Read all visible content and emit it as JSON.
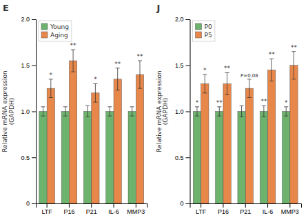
{
  "chart_data": [
    {
      "type": "bar",
      "title": "E",
      "categories": [
        "LTF",
        "P16",
        "P21",
        "IL-6",
        "MMP3"
      ],
      "series": [
        {
          "name": "Young",
          "color": "#6db36d",
          "values": [
            1.0,
            1.0,
            1.0,
            1.0,
            1.0
          ],
          "errors": [
            0.05,
            0.05,
            0.06,
            0.05,
            0.05
          ],
          "annotations": [
            null,
            null,
            null,
            null,
            null
          ]
        },
        {
          "name": "Aging",
          "color": "#e8874a",
          "values": [
            1.25,
            1.55,
            1.2,
            1.35,
            1.4
          ],
          "errors": [
            0.1,
            0.12,
            0.1,
            0.12,
            0.15
          ],
          "annotations": [
            "*",
            "**",
            "*",
            "**",
            "**"
          ]
        }
      ],
      "ylabel": "Relative mRNA expression\n(GAPDH)",
      "ylim": [
        0,
        2.0
      ],
      "yticks": [
        0,
        0.5,
        {
          "value": 1.0,
          "label": "1.0"
        },
        1.5,
        {
          "value": 2.0,
          "label": "2.0"
        }
      ],
      "legend": "upper left"
    },
    {
      "type": "bar",
      "title": "J",
      "categories": [
        "LTF",
        "P16",
        "P21",
        "IL-6",
        "MMP3"
      ],
      "series": [
        {
          "name": "P0",
          "color": "#6db36d",
          "values": [
            1.0,
            1.0,
            1.0,
            1.0,
            1.0
          ],
          "errors": [
            0.05,
            0.05,
            0.06,
            0.06,
            0.05
          ],
          "annotations": [
            "*",
            "**",
            null,
            "**",
            "*"
          ]
        },
        {
          "name": "P5",
          "color": "#e8874a",
          "values": [
            1.3,
            1.3,
            1.25,
            1.45,
            1.5
          ],
          "errors": [
            0.1,
            0.12,
            0.1,
            0.12,
            0.15
          ],
          "annotations": [
            "*",
            "**",
            "P=0.08",
            "**",
            "**"
          ]
        }
      ],
      "ylabel": "Relative mRNA expression\n(GAPDH)",
      "ylim": [
        0,
        2.0
      ],
      "yticks": [
        0,
        0.5,
        {
          "value": 1.0,
          "label": "1.0"
        },
        1.5,
        {
          "value": 2.0,
          "label": "2.0"
        }
      ],
      "legend": "upper left"
    }
  ]
}
